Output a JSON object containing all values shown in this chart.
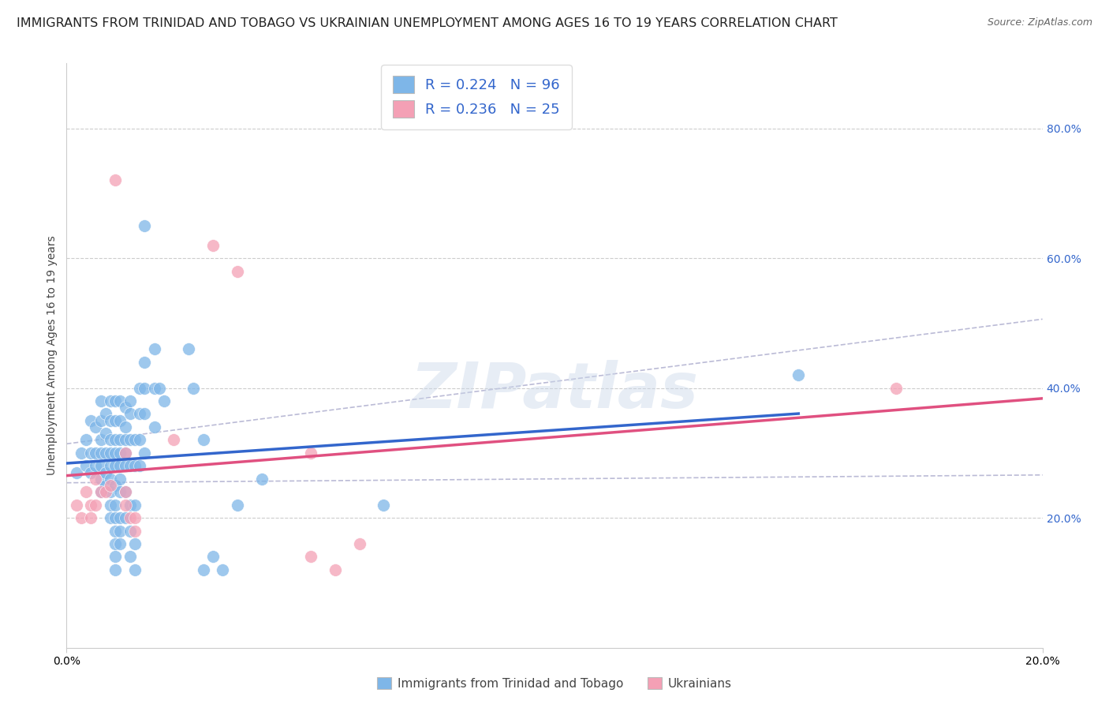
{
  "title": "IMMIGRANTS FROM TRINIDAD AND TOBAGO VS UKRAINIAN UNEMPLOYMENT AMONG AGES 16 TO 19 YEARS CORRELATION CHART",
  "source": "Source: ZipAtlas.com",
  "ylabel": "Unemployment Among Ages 16 to 19 years",
  "legend_blue_label": "R = 0.224   N = 96",
  "legend_pink_label": "R = 0.236   N = 25",
  "legend_label_blue": "Immigrants from Trinidad and Tobago",
  "legend_label_pink": "Ukrainians",
  "watermark": "ZIPatlas",
  "blue_color": "#7EB6E8",
  "pink_color": "#F4A0B5",
  "blue_line_color": "#3366CC",
  "pink_line_color": "#E05080",
  "dashed_color": "#AAAACC",
  "blue_scatter": [
    [
      0.2,
      27
    ],
    [
      0.3,
      30
    ],
    [
      0.4,
      32
    ],
    [
      0.4,
      28
    ],
    [
      0.5,
      35
    ],
    [
      0.5,
      30
    ],
    [
      0.5,
      27
    ],
    [
      0.6,
      34
    ],
    [
      0.6,
      30
    ],
    [
      0.6,
      28
    ],
    [
      0.7,
      38
    ],
    [
      0.7,
      35
    ],
    [
      0.7,
      32
    ],
    [
      0.7,
      30
    ],
    [
      0.7,
      28
    ],
    [
      0.7,
      26
    ],
    [
      0.7,
      24
    ],
    [
      0.8,
      36
    ],
    [
      0.8,
      33
    ],
    [
      0.8,
      30
    ],
    [
      0.8,
      27
    ],
    [
      0.8,
      25
    ],
    [
      0.9,
      38
    ],
    [
      0.9,
      35
    ],
    [
      0.9,
      32
    ],
    [
      0.9,
      30
    ],
    [
      0.9,
      28
    ],
    [
      0.9,
      26
    ],
    [
      0.9,
      24
    ],
    [
      0.9,
      22
    ],
    [
      0.9,
      20
    ],
    [
      1.0,
      38
    ],
    [
      1.0,
      35
    ],
    [
      1.0,
      32
    ],
    [
      1.0,
      30
    ],
    [
      1.0,
      28
    ],
    [
      1.0,
      25
    ],
    [
      1.0,
      22
    ],
    [
      1.0,
      20
    ],
    [
      1.0,
      18
    ],
    [
      1.0,
      16
    ],
    [
      1.0,
      14
    ],
    [
      1.0,
      12
    ],
    [
      1.1,
      38
    ],
    [
      1.1,
      35
    ],
    [
      1.1,
      32
    ],
    [
      1.1,
      30
    ],
    [
      1.1,
      28
    ],
    [
      1.1,
      26
    ],
    [
      1.1,
      24
    ],
    [
      1.1,
      20
    ],
    [
      1.1,
      18
    ],
    [
      1.1,
      16
    ],
    [
      1.2,
      37
    ],
    [
      1.2,
      34
    ],
    [
      1.2,
      32
    ],
    [
      1.2,
      30
    ],
    [
      1.2,
      28
    ],
    [
      1.2,
      24
    ],
    [
      1.2,
      20
    ],
    [
      1.3,
      38
    ],
    [
      1.3,
      36
    ],
    [
      1.3,
      32
    ],
    [
      1.3,
      28
    ],
    [
      1.3,
      22
    ],
    [
      1.3,
      18
    ],
    [
      1.3,
      14
    ],
    [
      1.4,
      32
    ],
    [
      1.4,
      28
    ],
    [
      1.4,
      22
    ],
    [
      1.4,
      16
    ],
    [
      1.4,
      12
    ],
    [
      1.5,
      40
    ],
    [
      1.5,
      36
    ],
    [
      1.5,
      32
    ],
    [
      1.5,
      28
    ],
    [
      1.6,
      65
    ],
    [
      1.6,
      44
    ],
    [
      1.6,
      40
    ],
    [
      1.6,
      36
    ],
    [
      1.6,
      30
    ],
    [
      1.8,
      46
    ],
    [
      1.8,
      40
    ],
    [
      1.8,
      34
    ],
    [
      1.9,
      40
    ],
    [
      2.0,
      38
    ],
    [
      2.5,
      46
    ],
    [
      2.6,
      40
    ],
    [
      2.8,
      32
    ],
    [
      2.8,
      12
    ],
    [
      3.0,
      14
    ],
    [
      3.2,
      12
    ],
    [
      3.5,
      22
    ],
    [
      4.0,
      26
    ],
    [
      6.5,
      22
    ],
    [
      15.0,
      42
    ]
  ],
  "pink_scatter": [
    [
      0.2,
      22
    ],
    [
      0.3,
      20
    ],
    [
      0.4,
      24
    ],
    [
      0.5,
      22
    ],
    [
      0.5,
      20
    ],
    [
      0.6,
      26
    ],
    [
      0.6,
      22
    ],
    [
      0.7,
      24
    ],
    [
      0.8,
      24
    ],
    [
      0.9,
      25
    ],
    [
      1.0,
      72
    ],
    [
      1.2,
      30
    ],
    [
      1.2,
      24
    ],
    [
      1.2,
      22
    ],
    [
      1.3,
      20
    ],
    [
      1.4,
      20
    ],
    [
      1.4,
      18
    ],
    [
      2.2,
      32
    ],
    [
      3.0,
      62
    ],
    [
      3.5,
      58
    ],
    [
      5.0,
      14
    ],
    [
      5.5,
      12
    ],
    [
      6.0,
      16
    ],
    [
      5.0,
      30
    ],
    [
      17.0,
      40
    ]
  ],
  "xlim": [
    0.0,
    20.0
  ],
  "ylim": [
    0.0,
    90.0
  ],
  "yticks_right": [
    20,
    40,
    60,
    80
  ],
  "ytick_labels_right": [
    "20.0%",
    "40.0%",
    "60.0%",
    "80.0%"
  ],
  "xtick_labels": [
    "0.0%",
    "20.0%"
  ],
  "blue_line_xrange": [
    0.0,
    20.0
  ],
  "pink_line_xrange": [
    0.0,
    20.0
  ],
  "background_color": "#ffffff",
  "grid_color": "#cccccc",
  "title_fontsize": 11.5,
  "axis_label_fontsize": 10,
  "tick_fontsize": 10
}
